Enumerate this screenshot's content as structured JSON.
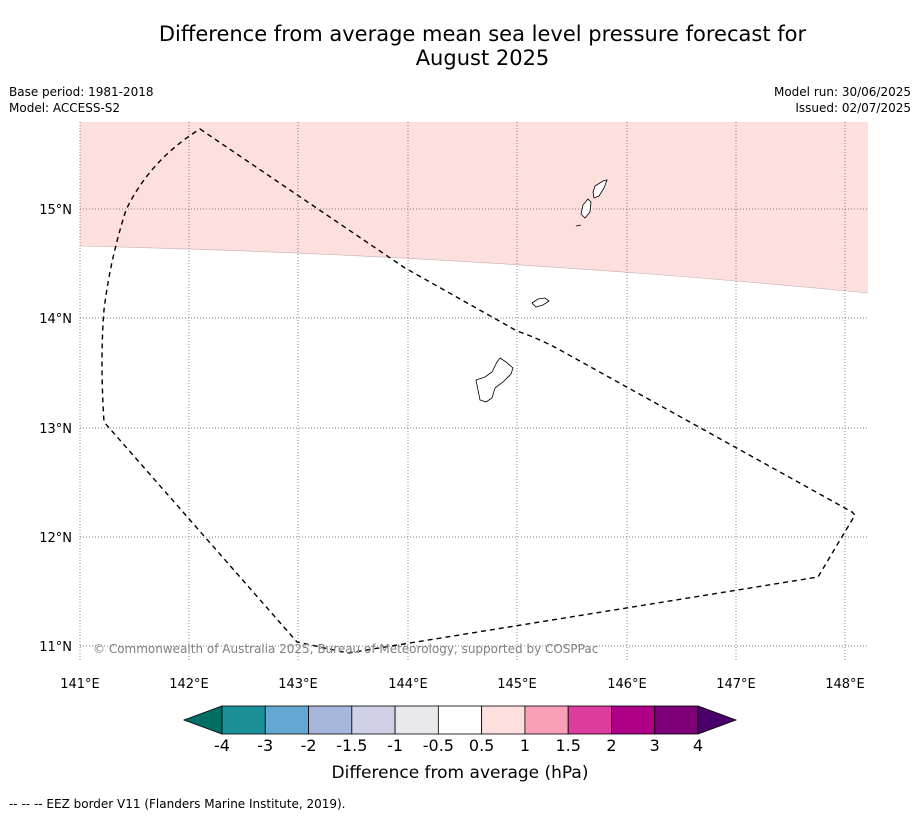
{
  "title_line1": "Difference from average mean sea level pressure forecast for",
  "title_line2": "August 2025",
  "base_period": "Base period: 1981-2018",
  "model": "Model: ACCESS-S2",
  "model_run": "Model run: 30/06/2025",
  "issued": "Issued: 02/07/2025",
  "map": {
    "lat_labels": [
      "15°N",
      "14°N",
      "13°N",
      "12°N",
      "11°N"
    ],
    "lon_labels": [
      "141°E",
      "142°E",
      "143°E",
      "144°E",
      "145°E",
      "146°E",
      "147°E",
      "148°E"
    ],
    "copyright": "© Commonwealth of Australia 2025, Bureau of Meteorology, supported by COSPPac",
    "shaded_category": "0.5 to 1",
    "shaded_color": "#fddfdd"
  },
  "colorbar": {
    "ticks": [
      "-4",
      "-3",
      "-2",
      "-1.5",
      "-1",
      "-0.5",
      "0.5",
      "1",
      "1.5",
      "2",
      "3",
      "4"
    ],
    "colors": [
      "#006e64",
      "#1a9096",
      "#62a8d3",
      "#a5b8db",
      "#cfcfe6",
      "#e9e8ec",
      "#ffffff",
      "#fddfdd",
      "#f99fb8",
      "#df3d9d",
      "#ad0087",
      "#7d0078",
      "#4a006a"
    ],
    "label": "Difference from average (hPa)"
  },
  "footnote": "--  --  -- EEZ border V11 (Flanders Marine Institute, 2019)."
}
